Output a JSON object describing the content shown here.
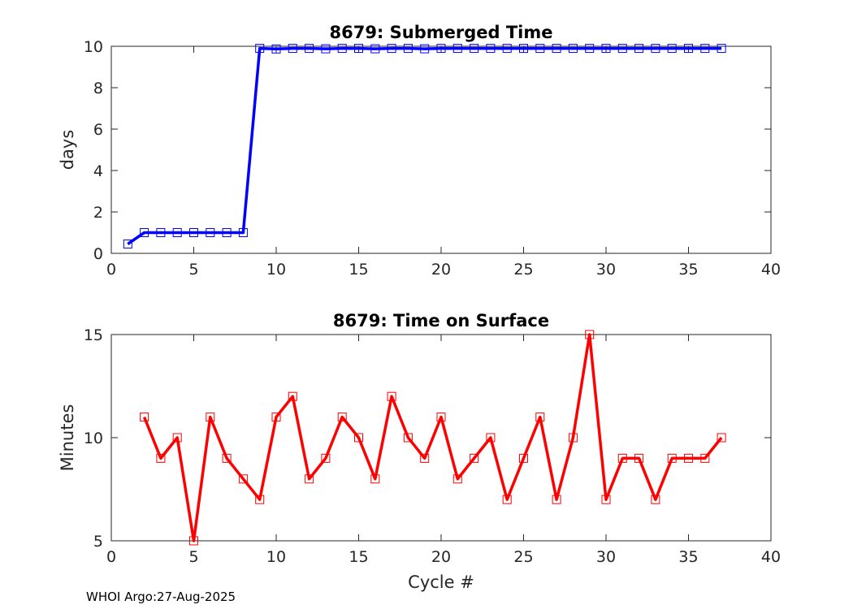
{
  "chart_data": [
    {
      "type": "line",
      "title": "8679: Submerged Time",
      "xlabel": "",
      "ylabel": "days",
      "xlim": [
        0,
        40
      ],
      "ylim": [
        0,
        10
      ],
      "xticks": [
        0,
        5,
        10,
        15,
        20,
        25,
        30,
        35,
        40
      ],
      "yticks": [
        0,
        2,
        4,
        6,
        8,
        10
      ],
      "grid": true,
      "color": "#0000ff",
      "marker": "square",
      "series": [
        {
          "name": "Submerged Time",
          "x": [
            1,
            2,
            3,
            4,
            5,
            6,
            7,
            8,
            9,
            10,
            11,
            12,
            13,
            14,
            15,
            16,
            17,
            18,
            19,
            20,
            21,
            22,
            23,
            24,
            25,
            26,
            27,
            28,
            29,
            30,
            31,
            32,
            33,
            34,
            35,
            36,
            37
          ],
          "values": [
            0.45,
            1.0,
            1.0,
            1.0,
            1.0,
            1.0,
            1.0,
            1.0,
            9.9,
            9.87,
            9.9,
            9.9,
            9.88,
            9.9,
            9.9,
            9.88,
            9.9,
            9.9,
            9.88,
            9.9,
            9.9,
            9.9,
            9.9,
            9.9,
            9.9,
            9.9,
            9.9,
            9.9,
            9.9,
            9.9,
            9.9,
            9.9,
            9.9,
            9.9,
            9.9,
            9.9,
            9.9
          ]
        }
      ]
    },
    {
      "type": "line",
      "title": "8679: Time on Surface",
      "xlabel": "Cycle #",
      "ylabel": "Minutes",
      "xlim": [
        0,
        40
      ],
      "ylim": [
        5,
        15
      ],
      "xticks": [
        0,
        5,
        10,
        15,
        20,
        25,
        30,
        35,
        40
      ],
      "yticks": [
        5,
        10,
        15
      ],
      "grid": true,
      "color": "#ff0000",
      "marker": "square",
      "series": [
        {
          "name": "Time on Surface",
          "x": [
            2,
            3,
            4,
            5,
            6,
            7,
            8,
            9,
            10,
            11,
            12,
            13,
            14,
            15,
            16,
            17,
            18,
            19,
            20,
            21,
            22,
            23,
            24,
            25,
            26,
            27,
            28,
            29,
            30,
            31,
            32,
            33,
            34,
            35,
            36,
            37
          ],
          "values": [
            11,
            9,
            10,
            5,
            11,
            9,
            8,
            7,
            11,
            12,
            8,
            9,
            11,
            10,
            8,
            12,
            10,
            9,
            11,
            8,
            9,
            10,
            7,
            9,
            11,
            7,
            10,
            15,
            7,
            9,
            9,
            7,
            9,
            9,
            9,
            10
          ]
        }
      ]
    }
  ],
  "footer": "WHOI Argo:27-Aug-2025"
}
